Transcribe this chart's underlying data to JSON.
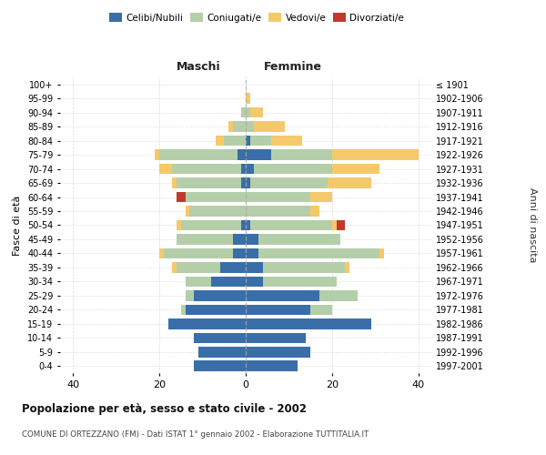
{
  "age_groups": [
    "0-4",
    "5-9",
    "10-14",
    "15-19",
    "20-24",
    "25-29",
    "30-34",
    "35-39",
    "40-44",
    "45-49",
    "50-54",
    "55-59",
    "60-64",
    "65-69",
    "70-74",
    "75-79",
    "80-84",
    "85-89",
    "90-94",
    "95-99",
    "100+"
  ],
  "birth_years": [
    "1997-2001",
    "1992-1996",
    "1987-1991",
    "1982-1986",
    "1977-1981",
    "1972-1976",
    "1967-1971",
    "1962-1966",
    "1957-1961",
    "1952-1956",
    "1947-1951",
    "1942-1946",
    "1937-1941",
    "1932-1936",
    "1927-1931",
    "1922-1926",
    "1917-1921",
    "1912-1916",
    "1907-1911",
    "1902-1906",
    "≤ 1901"
  ],
  "male": {
    "celibi": [
      12,
      11,
      12,
      18,
      14,
      12,
      8,
      6,
      3,
      3,
      1,
      0,
      0,
      1,
      1,
      2,
      0,
      0,
      0,
      0,
      0
    ],
    "coniugati": [
      0,
      0,
      0,
      0,
      1,
      2,
      6,
      10,
      16,
      13,
      14,
      13,
      14,
      15,
      16,
      18,
      5,
      3,
      1,
      0,
      0
    ],
    "vedovi": [
      0,
      0,
      0,
      0,
      0,
      0,
      0,
      1,
      1,
      0,
      1,
      1,
      0,
      1,
      3,
      1,
      2,
      1,
      0,
      0,
      0
    ],
    "divorziati": [
      0,
      0,
      0,
      0,
      0,
      0,
      0,
      0,
      0,
      0,
      0,
      0,
      2,
      0,
      0,
      0,
      0,
      0,
      0,
      0,
      0
    ]
  },
  "female": {
    "nubili": [
      12,
      15,
      14,
      29,
      15,
      17,
      4,
      4,
      3,
      3,
      1,
      0,
      0,
      1,
      2,
      6,
      1,
      0,
      0,
      0,
      0
    ],
    "coniugate": [
      0,
      0,
      0,
      0,
      5,
      9,
      17,
      19,
      28,
      19,
      19,
      15,
      15,
      18,
      18,
      14,
      5,
      2,
      1,
      0,
      0
    ],
    "vedove": [
      0,
      0,
      0,
      0,
      0,
      0,
      0,
      1,
      1,
      0,
      1,
      2,
      5,
      10,
      11,
      20,
      7,
      7,
      3,
      1,
      0
    ],
    "divorziate": [
      0,
      0,
      0,
      0,
      0,
      0,
      0,
      0,
      0,
      0,
      2,
      0,
      0,
      0,
      0,
      0,
      0,
      0,
      0,
      0,
      0
    ]
  },
  "colors": {
    "celibi_nubili": "#3a6ea8",
    "coniugati": "#b5ceaa",
    "vedovi": "#f5c96b",
    "divorziati": "#c0392b"
  },
  "xlim": [
    -43,
    43
  ],
  "xticks": [
    -40,
    -20,
    0,
    20,
    40
  ],
  "xticklabels": [
    "40",
    "20",
    "0",
    "20",
    "40"
  ],
  "title": "Popolazione per età, sesso e stato civile - 2002",
  "subtitle": "COMUNE DI ORTEZZANO (FM) - Dati ISTAT 1° gennaio 2002 - Elaborazione TUTTITALIA.IT",
  "ylabel_left": "Fasce di età",
  "ylabel_right": "Anni di nascita",
  "label_maschi": "Maschi",
  "label_femmine": "Femmine",
  "legend_labels": [
    "Celibi/Nubili",
    "Coniugati/e",
    "Vedovi/e",
    "Divorziati/e"
  ],
  "bar_height": 0.75,
  "background_color": "#ffffff",
  "grid_color": "#cccccc"
}
